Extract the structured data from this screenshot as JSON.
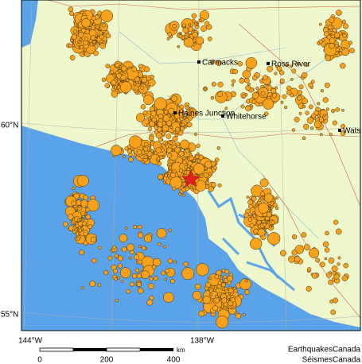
{
  "map": {
    "places": [
      "Carmacks",
      "Ross River",
      "Haines Junction",
      "Whitehorse",
      "Wats"
    ],
    "latitude_labels": [
      "60°N",
      "55°N"
    ],
    "longitude_labels": [
      "144°W",
      "138°W"
    ],
    "scale": {
      "ticks": [
        0,
        200,
        400
      ],
      "unit": "km"
    },
    "credits": [
      "EarthquakesCanada",
      "SéismesCanada"
    ]
  }
}
